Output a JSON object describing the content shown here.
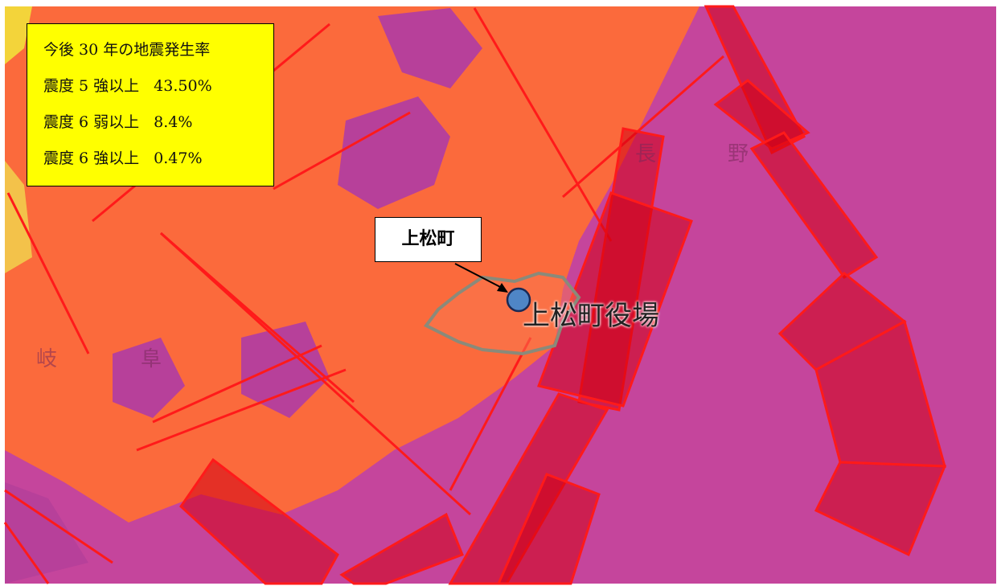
{
  "info_box": {
    "title": "今後 30 年の地震発生率",
    "rows": [
      {
        "label": "震度 5 強以上",
        "value": "43.50%"
      },
      {
        "label": "震度 6 弱以上",
        "value": "8.4%"
      },
      {
        "label": "震度 6 強以上",
        "value": "0.47%"
      }
    ]
  },
  "callout": "上松町",
  "office_label": "上松町役場",
  "map_labels": [
    "長",
    "野",
    "岐",
    "阜"
  ]
}
